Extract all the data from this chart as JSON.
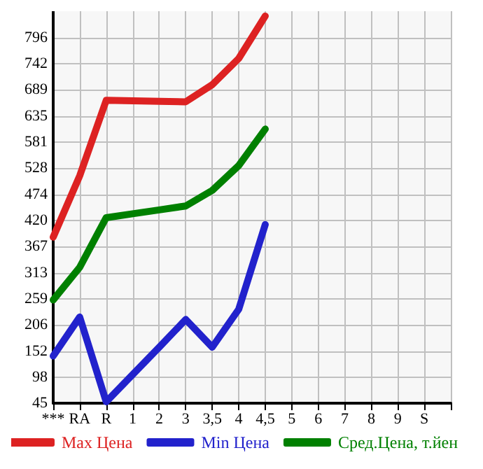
{
  "chart_data": {
    "type": "line",
    "categories": [
      "***",
      "RA",
      "R",
      "1",
      "2",
      "3",
      "3,5",
      "4",
      "4,5",
      "5",
      "6",
      "7",
      "8",
      "9",
      "S",
      null
    ],
    "series": [
      {
        "name": "Max Цена",
        "color": "#dd2222",
        "values": [
          386,
          512,
          667,
          666,
          665,
          664,
          699,
          753,
          840,
          null,
          null,
          null,
          null,
          null,
          null,
          null
        ]
      },
      {
        "name": "Min Цена",
        "color": "#2222cc",
        "values": [
          142,
          222,
          48,
          104,
          160,
          217,
          160,
          238,
          412,
          null,
          null,
          null,
          null,
          null,
          null,
          null
        ]
      },
      {
        "name": "Сред.Цена, т.йен",
        "color": "#008000",
        "values": [
          257,
          324,
          426,
          434,
          442,
          450,
          482,
          533,
          608,
          null,
          null,
          null,
          null,
          null,
          null,
          null
        ]
      }
    ],
    "ylim": [
      45,
      850
    ],
    "yticks": [
      45,
      98,
      152,
      206,
      259,
      313,
      367,
      420,
      474,
      528,
      581,
      635,
      689,
      742,
      796
    ],
    "grid": true,
    "legend": "bottom",
    "marker": "none",
    "line_style": "solid"
  }
}
